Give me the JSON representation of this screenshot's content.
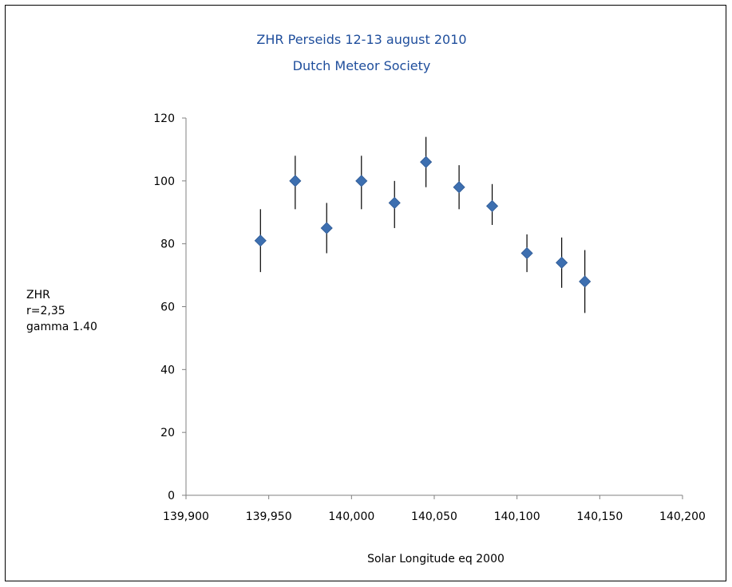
{
  "chart_data": {
    "type": "scatter",
    "title": "ZHR Perseids 12-13 august 2010",
    "subtitle": "Dutch Meteor Society",
    "xlabel": "Solar Longitude eq 2000",
    "ylabel_lines": [
      "ZHR",
      "r=2,35",
      "gamma 1.40"
    ],
    "xlim": [
      139.9,
      140.2
    ],
    "ylim": [
      0,
      120
    ],
    "x_tick_values": [
      139.9,
      139.95,
      140.0,
      140.05,
      140.1,
      140.15,
      140.2
    ],
    "x_tick_labels": [
      "139,900",
      "139,950",
      "140,000",
      "140,050",
      "140,100",
      "140,150",
      "140,200"
    ],
    "y_tick_values": [
      0,
      20,
      40,
      60,
      80,
      100,
      120
    ],
    "y_tick_labels": [
      "0",
      "20",
      "40",
      "60",
      "80",
      "100",
      "120"
    ],
    "grid": false,
    "legend": "none",
    "marker_color": "#3d6fb0",
    "marker": "diamond",
    "error_bar_color": "#000000",
    "points": [
      {
        "x": 139.945,
        "y": 81,
        "y_low": 71,
        "y_high": 91
      },
      {
        "x": 139.966,
        "y": 100,
        "y_low": 91,
        "y_high": 108
      },
      {
        "x": 139.985,
        "y": 85,
        "y_low": 77,
        "y_high": 93
      },
      {
        "x": 140.006,
        "y": 100,
        "y_low": 91,
        "y_high": 108
      },
      {
        "x": 140.026,
        "y": 93,
        "y_low": 85,
        "y_high": 100
      },
      {
        "x": 140.045,
        "y": 106,
        "y_low": 98,
        "y_high": 114
      },
      {
        "x": 140.065,
        "y": 98,
        "y_low": 91,
        "y_high": 105
      },
      {
        "x": 140.085,
        "y": 92,
        "y_low": 86,
        "y_high": 99
      },
      {
        "x": 140.106,
        "y": 77,
        "y_low": 71,
        "y_high": 83
      },
      {
        "x": 140.127,
        "y": 74,
        "y_low": 66,
        "y_high": 82
      },
      {
        "x": 140.141,
        "y": 68,
        "y_low": 58,
        "y_high": 78
      }
    ]
  }
}
